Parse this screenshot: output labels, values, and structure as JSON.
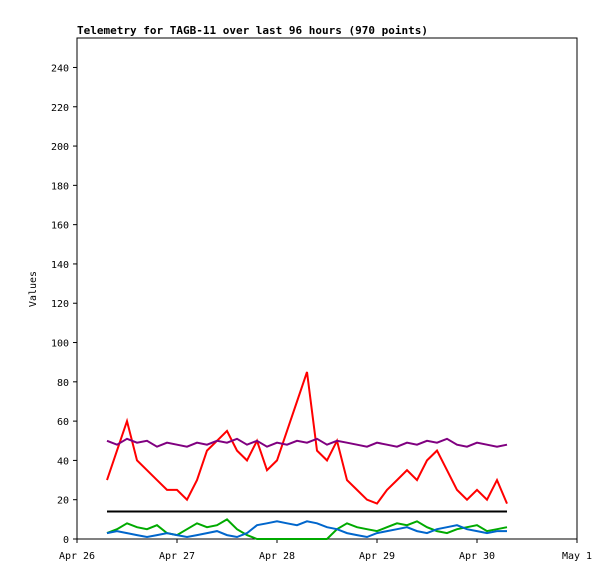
{
  "chart_data": {
    "type": "line",
    "title": "Telemetry for TAGB-11 over last 96 hours (970 points)",
    "y_label": "Values",
    "x": [
      26.3,
      26.4,
      26.5,
      26.6,
      26.7,
      26.8,
      26.9,
      27.0,
      27.1,
      27.2,
      27.3,
      27.4,
      27.5,
      27.6,
      27.7,
      27.8,
      27.9,
      28.0,
      28.1,
      28.2,
      28.3,
      28.4,
      28.5,
      28.6,
      28.7,
      28.8,
      28.9,
      29.0,
      29.1,
      29.2,
      29.3,
      29.4,
      29.5,
      29.6,
      29.7,
      29.8,
      29.9,
      30.0,
      30.1,
      30.2,
      30.3
    ],
    "xlim": [
      26,
      31
    ],
    "xticks": [
      {
        "value": 26,
        "label": "Apr 26"
      },
      {
        "value": 27,
        "label": "Apr 27"
      },
      {
        "value": 28,
        "label": "Apr 28"
      },
      {
        "value": 29,
        "label": "Apr 29"
      },
      {
        "value": 30,
        "label": "Apr 30"
      },
      {
        "value": 31,
        "label": "May 1"
      }
    ],
    "ylim": [
      0,
      255
    ],
    "yticks": [
      0,
      20,
      40,
      60,
      80,
      100,
      120,
      140,
      160,
      180,
      200,
      220,
      240
    ],
    "series": [
      {
        "name": "red",
        "color": "#ff0000",
        "values": [
          30,
          45,
          60,
          40,
          35,
          30,
          25,
          25,
          20,
          30,
          45,
          50,
          55,
          45,
          40,
          50,
          35,
          40,
          55,
          70,
          85,
          45,
          40,
          50,
          30,
          25,
          20,
          18,
          25,
          30,
          35,
          30,
          40,
          45,
          35,
          25,
          20,
          25,
          20,
          30,
          18
        ]
      },
      {
        "name": "purple",
        "color": "#800080",
        "values": [
          50,
          48,
          51,
          49,
          50,
          47,
          49,
          48,
          47,
          49,
          48,
          50,
          49,
          51,
          48,
          50,
          47,
          49,
          48,
          50,
          49,
          51,
          48,
          50,
          49,
          48,
          47,
          49,
          48,
          47,
          49,
          48,
          50,
          49,
          51,
          48,
          47,
          49,
          48,
          47,
          48
        ]
      },
      {
        "name": "black",
        "color": "#000000",
        "values": [
          14,
          14,
          14,
          14,
          14,
          14,
          14,
          14,
          14,
          14,
          14,
          14,
          14,
          14,
          14,
          14,
          14,
          14,
          14,
          14,
          14,
          14,
          14,
          14,
          14,
          14,
          14,
          14,
          14,
          14,
          14,
          14,
          14,
          14,
          14,
          14,
          14,
          14,
          14,
          14,
          14
        ]
      },
      {
        "name": "green",
        "color": "#00aa00",
        "values": [
          3,
          5,
          8,
          6,
          5,
          7,
          3,
          2,
          5,
          8,
          6,
          7,
          10,
          5,
          2,
          0,
          0,
          0,
          0,
          0,
          0,
          0,
          0,
          5,
          8,
          6,
          5,
          4,
          6,
          8,
          7,
          9,
          6,
          4,
          3,
          5,
          6,
          7,
          4,
          5,
          6
        ]
      },
      {
        "name": "blue",
        "color": "#0066cc",
        "values": [
          3,
          4,
          3,
          2,
          1,
          2,
          3,
          2,
          1,
          2,
          3,
          4,
          2,
          1,
          3,
          7,
          8,
          9,
          8,
          7,
          9,
          8,
          6,
          5,
          3,
          2,
          1,
          3,
          4,
          5,
          6,
          4,
          3,
          5,
          6,
          7,
          5,
          4,
          3,
          4,
          4
        ]
      }
    ]
  }
}
